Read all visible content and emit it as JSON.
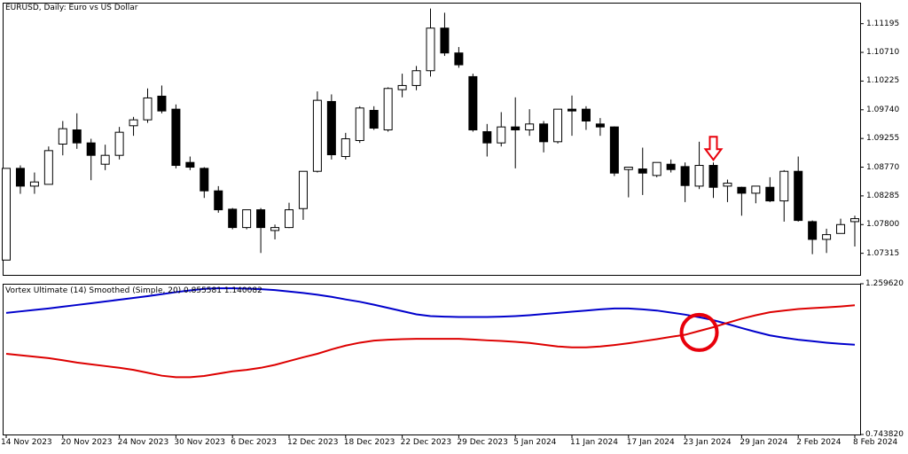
{
  "chart_data": [
    {
      "type": "candlestick",
      "title": "EURUSD, Daily:  Euro vs US Dollar",
      "ylim": [
        1.0695,
        1.1155
      ],
      "y_ticks": [
        "1.11195",
        "1.10710",
        "1.10225",
        "1.09740",
        "1.09255",
        "1.08770",
        "1.08285",
        "1.07800",
        "1.07315"
      ],
      "x_ticks": [
        "14 Nov 2023",
        "20 Nov 2023",
        "24 Nov 2023",
        "30 Nov 2023",
        "6 Dec 2023",
        "12 Dec 2023",
        "18 Dec 2023",
        "22 Dec 2023",
        "29 Dec 2023",
        "5 Jan 2024",
        "11 Jan 2024",
        "17 Jan 2024",
        "23 Jan 2024",
        "29 Jan 2024",
        "2 Feb 2024",
        "8 Feb 2024"
      ],
      "candles": [
        {
          "o": 1.072,
          "h": 1.0875,
          "l": 1.072,
          "c": 1.0875
        },
        {
          "o": 1.0875,
          "h": 1.088,
          "l": 1.0832,
          "c": 1.0845
        },
        {
          "o": 1.0845,
          "h": 1.0868,
          "l": 1.0832,
          "c": 1.0852
        },
        {
          "o": 1.0848,
          "h": 1.0912,
          "l": 1.0848,
          "c": 1.0905
        },
        {
          "o": 1.0916,
          "h": 1.0955,
          "l": 1.0897,
          "c": 1.0942
        },
        {
          "o": 1.094,
          "h": 1.0968,
          "l": 1.0908,
          "c": 1.0918
        },
        {
          "o": 1.0918,
          "h": 1.0925,
          "l": 1.0855,
          "c": 1.0897
        },
        {
          "o": 1.0882,
          "h": 1.0915,
          "l": 1.0872,
          "c": 1.0897
        },
        {
          "o": 1.0897,
          "h": 1.0945,
          "l": 1.089,
          "c": 1.0936
        },
        {
          "o": 1.0947,
          "h": 1.0962,
          "l": 1.093,
          "c": 1.0957
        },
        {
          "o": 1.0957,
          "h": 1.101,
          "l": 1.0952,
          "c": 1.0994
        },
        {
          "o": 1.0997,
          "h": 1.1015,
          "l": 1.0968,
          "c": 1.0972
        },
        {
          "o": 1.0975,
          "h": 1.0983,
          "l": 1.0875,
          "c": 1.088
        },
        {
          "o": 1.0885,
          "h": 1.0895,
          "l": 1.0872,
          "c": 1.0877
        },
        {
          "o": 1.0875,
          "h": 1.0877,
          "l": 1.0825,
          "c": 1.0837
        },
        {
          "o": 1.0837,
          "h": 1.0845,
          "l": 1.08,
          "c": 1.0805
        },
        {
          "o": 1.0806,
          "h": 1.0808,
          "l": 1.0772,
          "c": 1.0775
        },
        {
          "o": 1.0775,
          "h": 1.0802,
          "l": 1.0772,
          "c": 1.0805
        },
        {
          "o": 1.0805,
          "h": 1.0808,
          "l": 1.0732,
          "c": 1.0775
        },
        {
          "o": 1.077,
          "h": 1.078,
          "l": 1.0755,
          "c": 1.0775
        },
        {
          "o": 1.0775,
          "h": 1.0817,
          "l": 1.0774,
          "c": 1.0805
        },
        {
          "o": 1.0807,
          "h": 1.087,
          "l": 1.0788,
          "c": 1.087
        },
        {
          "o": 1.087,
          "h": 1.1005,
          "l": 1.0868,
          "c": 1.099
        },
        {
          "o": 1.0988,
          "h": 1.1,
          "l": 1.089,
          "c": 1.0898
        },
        {
          "o": 1.0895,
          "h": 1.0935,
          "l": 1.089,
          "c": 1.0925
        },
        {
          "o": 1.0922,
          "h": 1.098,
          "l": 1.0918,
          "c": 1.0977
        },
        {
          "o": 1.0973,
          "h": 1.098,
          "l": 1.094,
          "c": 1.0943
        },
        {
          "o": 1.094,
          "h": 1.1012,
          "l": 1.0937,
          "c": 1.101
        },
        {
          "o": 1.1008,
          "h": 1.1035,
          "l": 1.0995,
          "c": 1.1015
        },
        {
          "o": 1.1015,
          "h": 1.1048,
          "l": 1.1007,
          "c": 1.104
        },
        {
          "o": 1.104,
          "h": 1.1145,
          "l": 1.103,
          "c": 1.1112
        },
        {
          "o": 1.1112,
          "h": 1.1138,
          "l": 1.1065,
          "c": 1.107
        },
        {
          "o": 1.107,
          "h": 1.108,
          "l": 1.1045,
          "c": 1.105
        },
        {
          "o": 1.103,
          "h": 1.1035,
          "l": 1.0937,
          "c": 1.094
        },
        {
          "o": 1.0937,
          "h": 1.095,
          "l": 1.0895,
          "c": 1.0918
        },
        {
          "o": 1.0918,
          "h": 1.097,
          "l": 1.0912,
          "c": 1.0945
        },
        {
          "o": 1.0945,
          "h": 1.0995,
          "l": 1.0875,
          "c": 1.094
        },
        {
          "o": 1.094,
          "h": 1.0975,
          "l": 1.093,
          "c": 1.095
        },
        {
          "o": 1.095,
          "h": 1.0955,
          "l": 1.0902,
          "c": 1.092
        },
        {
          "o": 1.092,
          "h": 1.0975,
          "l": 1.0917,
          "c": 1.0975
        },
        {
          "o": 1.0975,
          "h": 1.0998,
          "l": 1.093,
          "c": 1.0972
        },
        {
          "o": 1.0975,
          "h": 1.098,
          "l": 1.094,
          "c": 1.0955
        },
        {
          "o": 1.095,
          "h": 1.096,
          "l": 1.093,
          "c": 1.0945
        },
        {
          "o": 1.0945,
          "h": 1.0946,
          "l": 1.0862,
          "c": 1.0867
        },
        {
          "o": 1.0873,
          "h": 1.0877,
          "l": 1.0826,
          "c": 1.0877
        },
        {
          "o": 1.0874,
          "h": 1.091,
          "l": 1.083,
          "c": 1.0867
        },
        {
          "o": 1.0863,
          "h": 1.0885,
          "l": 1.086,
          "c": 1.0885
        },
        {
          "o": 1.0882,
          "h": 1.089,
          "l": 1.0868,
          "c": 1.0873
        },
        {
          "o": 1.0878,
          "h": 1.0885,
          "l": 1.0818,
          "c": 1.0846
        },
        {
          "o": 1.0845,
          "h": 1.092,
          "l": 1.084,
          "c": 1.088
        },
        {
          "o": 1.088,
          "h": 1.0885,
          "l": 1.0825,
          "c": 1.0843
        },
        {
          "o": 1.0845,
          "h": 1.0856,
          "l": 1.0818,
          "c": 1.085
        },
        {
          "o": 1.0843,
          "h": 1.0844,
          "l": 1.0795,
          "c": 1.0833
        },
        {
          "o": 1.0833,
          "h": 1.0845,
          "l": 1.0816,
          "c": 1.0845
        },
        {
          "o": 1.0843,
          "h": 1.086,
          "l": 1.0818,
          "c": 1.082
        },
        {
          "o": 1.082,
          "h": 1.0872,
          "l": 1.0785,
          "c": 1.087
        },
        {
          "o": 1.087,
          "h": 1.0895,
          "l": 1.0785,
          "c": 1.0787
        },
        {
          "o": 1.0785,
          "h": 1.0787,
          "l": 1.073,
          "c": 1.0755
        },
        {
          "o": 1.0755,
          "h": 1.0773,
          "l": 1.0732,
          "c": 1.0763
        },
        {
          "o": 1.0765,
          "h": 1.079,
          "l": 1.0765,
          "c": 1.078
        },
        {
          "o": 1.0785,
          "h": 1.0795,
          "l": 1.0743,
          "c": 1.079
        }
      ],
      "annotations": [
        {
          "type": "down-arrow",
          "candle_index": 50,
          "color": "#e8000b"
        }
      ],
      "colors": {
        "bull_body": "#ffffff",
        "bear_body": "#000000",
        "outline": "#000000"
      }
    },
    {
      "type": "line",
      "title": "Vortex Ultimate (14) Smoothed (Simple, 20)  0.855581 1.140082",
      "ylim": [
        0.74382,
        1.25962
      ],
      "y_ticks": [
        "1.259620",
        "0.743820"
      ],
      "x_ticks": [
        "14 Nov 2023",
        "20 Nov 2023",
        "24 Nov 2023",
        "30 Nov 2023",
        "6 Dec 2023",
        "12 Dec 2023",
        "18 Dec 2023",
        "22 Dec 2023",
        "29 Dec 2023",
        "5 Jan 2024",
        "11 Jan 2024",
        "17 Jan 2024",
        "23 Jan 2024",
        "29 Jan 2024",
        "2 Feb 2024",
        "8 Feb 2024"
      ],
      "series": [
        {
          "color": "#0000cc",
          "values": [
            1.16,
            1.165,
            1.17,
            1.175,
            1.181,
            1.187,
            1.193,
            1.199,
            1.205,
            1.211,
            1.217,
            1.224,
            1.231,
            1.237,
            1.242,
            1.244,
            1.244,
            1.243,
            1.241,
            1.238,
            1.233,
            1.228,
            1.222,
            1.215,
            1.206,
            1.198,
            1.188,
            1.177,
            1.166,
            1.155,
            1.149,
            1.147,
            1.146,
            1.146,
            1.146,
            1.147,
            1.149,
            1.152,
            1.156,
            1.16,
            1.164,
            1.168,
            1.172,
            1.175,
            1.175,
            1.172,
            1.168,
            1.161,
            1.154,
            1.145,
            1.135,
            1.122,
            1.108,
            1.095,
            1.083,
            1.075,
            1.068,
            1.063,
            1.058,
            1.054,
            1.051
          ]
        },
        {
          "color": "#dd0000",
          "values": [
            1.02,
            1.015,
            1.01,
            1.005,
            0.998,
            0.99,
            0.984,
            0.978,
            0.972,
            0.965,
            0.955,
            0.945,
            0.94,
            0.94,
            0.944,
            0.952,
            0.96,
            0.965,
            0.972,
            0.982,
            0.995,
            1.008,
            1.02,
            1.035,
            1.048,
            1.058,
            1.065,
            1.068,
            1.07,
            1.071,
            1.071,
            1.071,
            1.071,
            1.069,
            1.066,
            1.064,
            1.061,
            1.057,
            1.051,
            1.045,
            1.042,
            1.042,
            1.045,
            1.05,
            1.056,
            1.063,
            1.07,
            1.078,
            1.085,
            1.098,
            1.111,
            1.126,
            1.14,
            1.152,
            1.162,
            1.168,
            1.173,
            1.176,
            1.179,
            1.182,
            1.186
          ]
        }
      ],
      "annotations": [
        {
          "type": "circle",
          "candle_index": 49,
          "value": 1.093,
          "color": "#e8000b"
        }
      ]
    }
  ]
}
